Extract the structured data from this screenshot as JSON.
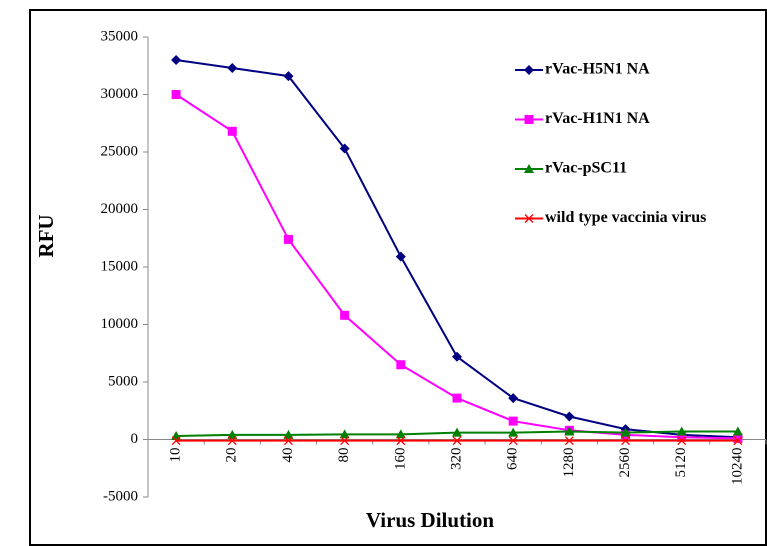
{
  "chart_data": {
    "type": "line",
    "y_label": "RFU",
    "x_label": "Virus Dilution",
    "categories": [
      "10",
      "20",
      "40",
      "80",
      "160",
      "320",
      "640",
      "1280",
      "2560",
      "5120",
      "10240"
    ],
    "series": [
      {
        "name": "rVac-H5N1 NA",
        "color": "#000080",
        "marker": "diamond",
        "values": [
          33000,
          32300,
          31600,
          25300,
          15900,
          7200,
          3600,
          2000,
          900,
          400,
          200
        ]
      },
      {
        "name": "rVac-H1N1 NA",
        "color": "#ff00ff",
        "marker": "square",
        "values": [
          30000,
          26800,
          17400,
          10800,
          6500,
          3600,
          1600,
          800,
          400,
          200,
          100
        ]
      },
      {
        "name": "rVac-pSC11",
        "color": "#008000",
        "marker": "triangle",
        "values": [
          300,
          400,
          400,
          450,
          450,
          600,
          600,
          700,
          600,
          700,
          700
        ]
      },
      {
        "name": "wild type vaccinia virus",
        "color": "#ff0000",
        "marker": "x",
        "values": [
          -100,
          -100,
          -100,
          -100,
          -100,
          -100,
          -100,
          -100,
          -100,
          -100,
          -100
        ]
      }
    ],
    "ylim": [
      -5000,
      35000
    ],
    "yticks": [
      -5000,
      0,
      5000,
      10000,
      15000,
      20000,
      25000,
      30000,
      35000
    ],
    "legend": "upper right"
  }
}
